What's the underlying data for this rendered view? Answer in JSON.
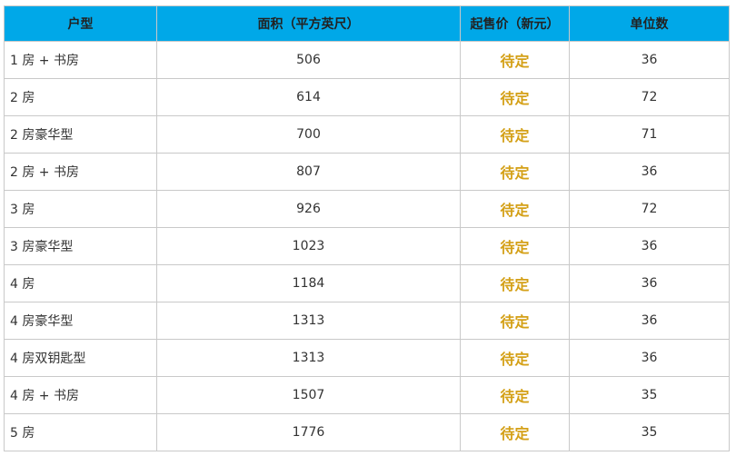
{
  "table": {
    "headers": [
      "户型",
      "面积（平方英尺）",
      "起售价（新元）",
      "单位数"
    ],
    "rows": [
      {
        "type": "1 房 + 书房",
        "area": "506",
        "price": "待定",
        "units": "36"
      },
      {
        "type": "2 房",
        "area": "614",
        "price": "待定",
        "units": "72"
      },
      {
        "type": "2 房豪华型",
        "area": "700",
        "price": "待定",
        "units": "71"
      },
      {
        "type": "2 房 + 书房",
        "area": "807",
        "price": "待定",
        "units": "36"
      },
      {
        "type": "3 房",
        "area": "926",
        "price": "待定",
        "units": "72"
      },
      {
        "type": "3 房豪华型",
        "area": "1023",
        "price": "待定",
        "units": "36"
      },
      {
        "type": "4 房",
        "area": "1184",
        "price": "待定",
        "units": "36"
      },
      {
        "type": "4 房豪华型",
        "area": "1313",
        "price": "待定",
        "units": "36"
      },
      {
        "type": "4 房双钥匙型",
        "area": "1313",
        "price": "待定",
        "units": "36"
      },
      {
        "type": "4 房 + 书房",
        "area": "1507",
        "price": "待定",
        "units": "35"
      },
      {
        "type": "5 房",
        "area": "1776",
        "price": "待定",
        "units": "35"
      }
    ]
  },
  "colors": {
    "header_bg": "#00a8e8",
    "price_text": "#d4a017",
    "border": "#c9c9c9"
  }
}
